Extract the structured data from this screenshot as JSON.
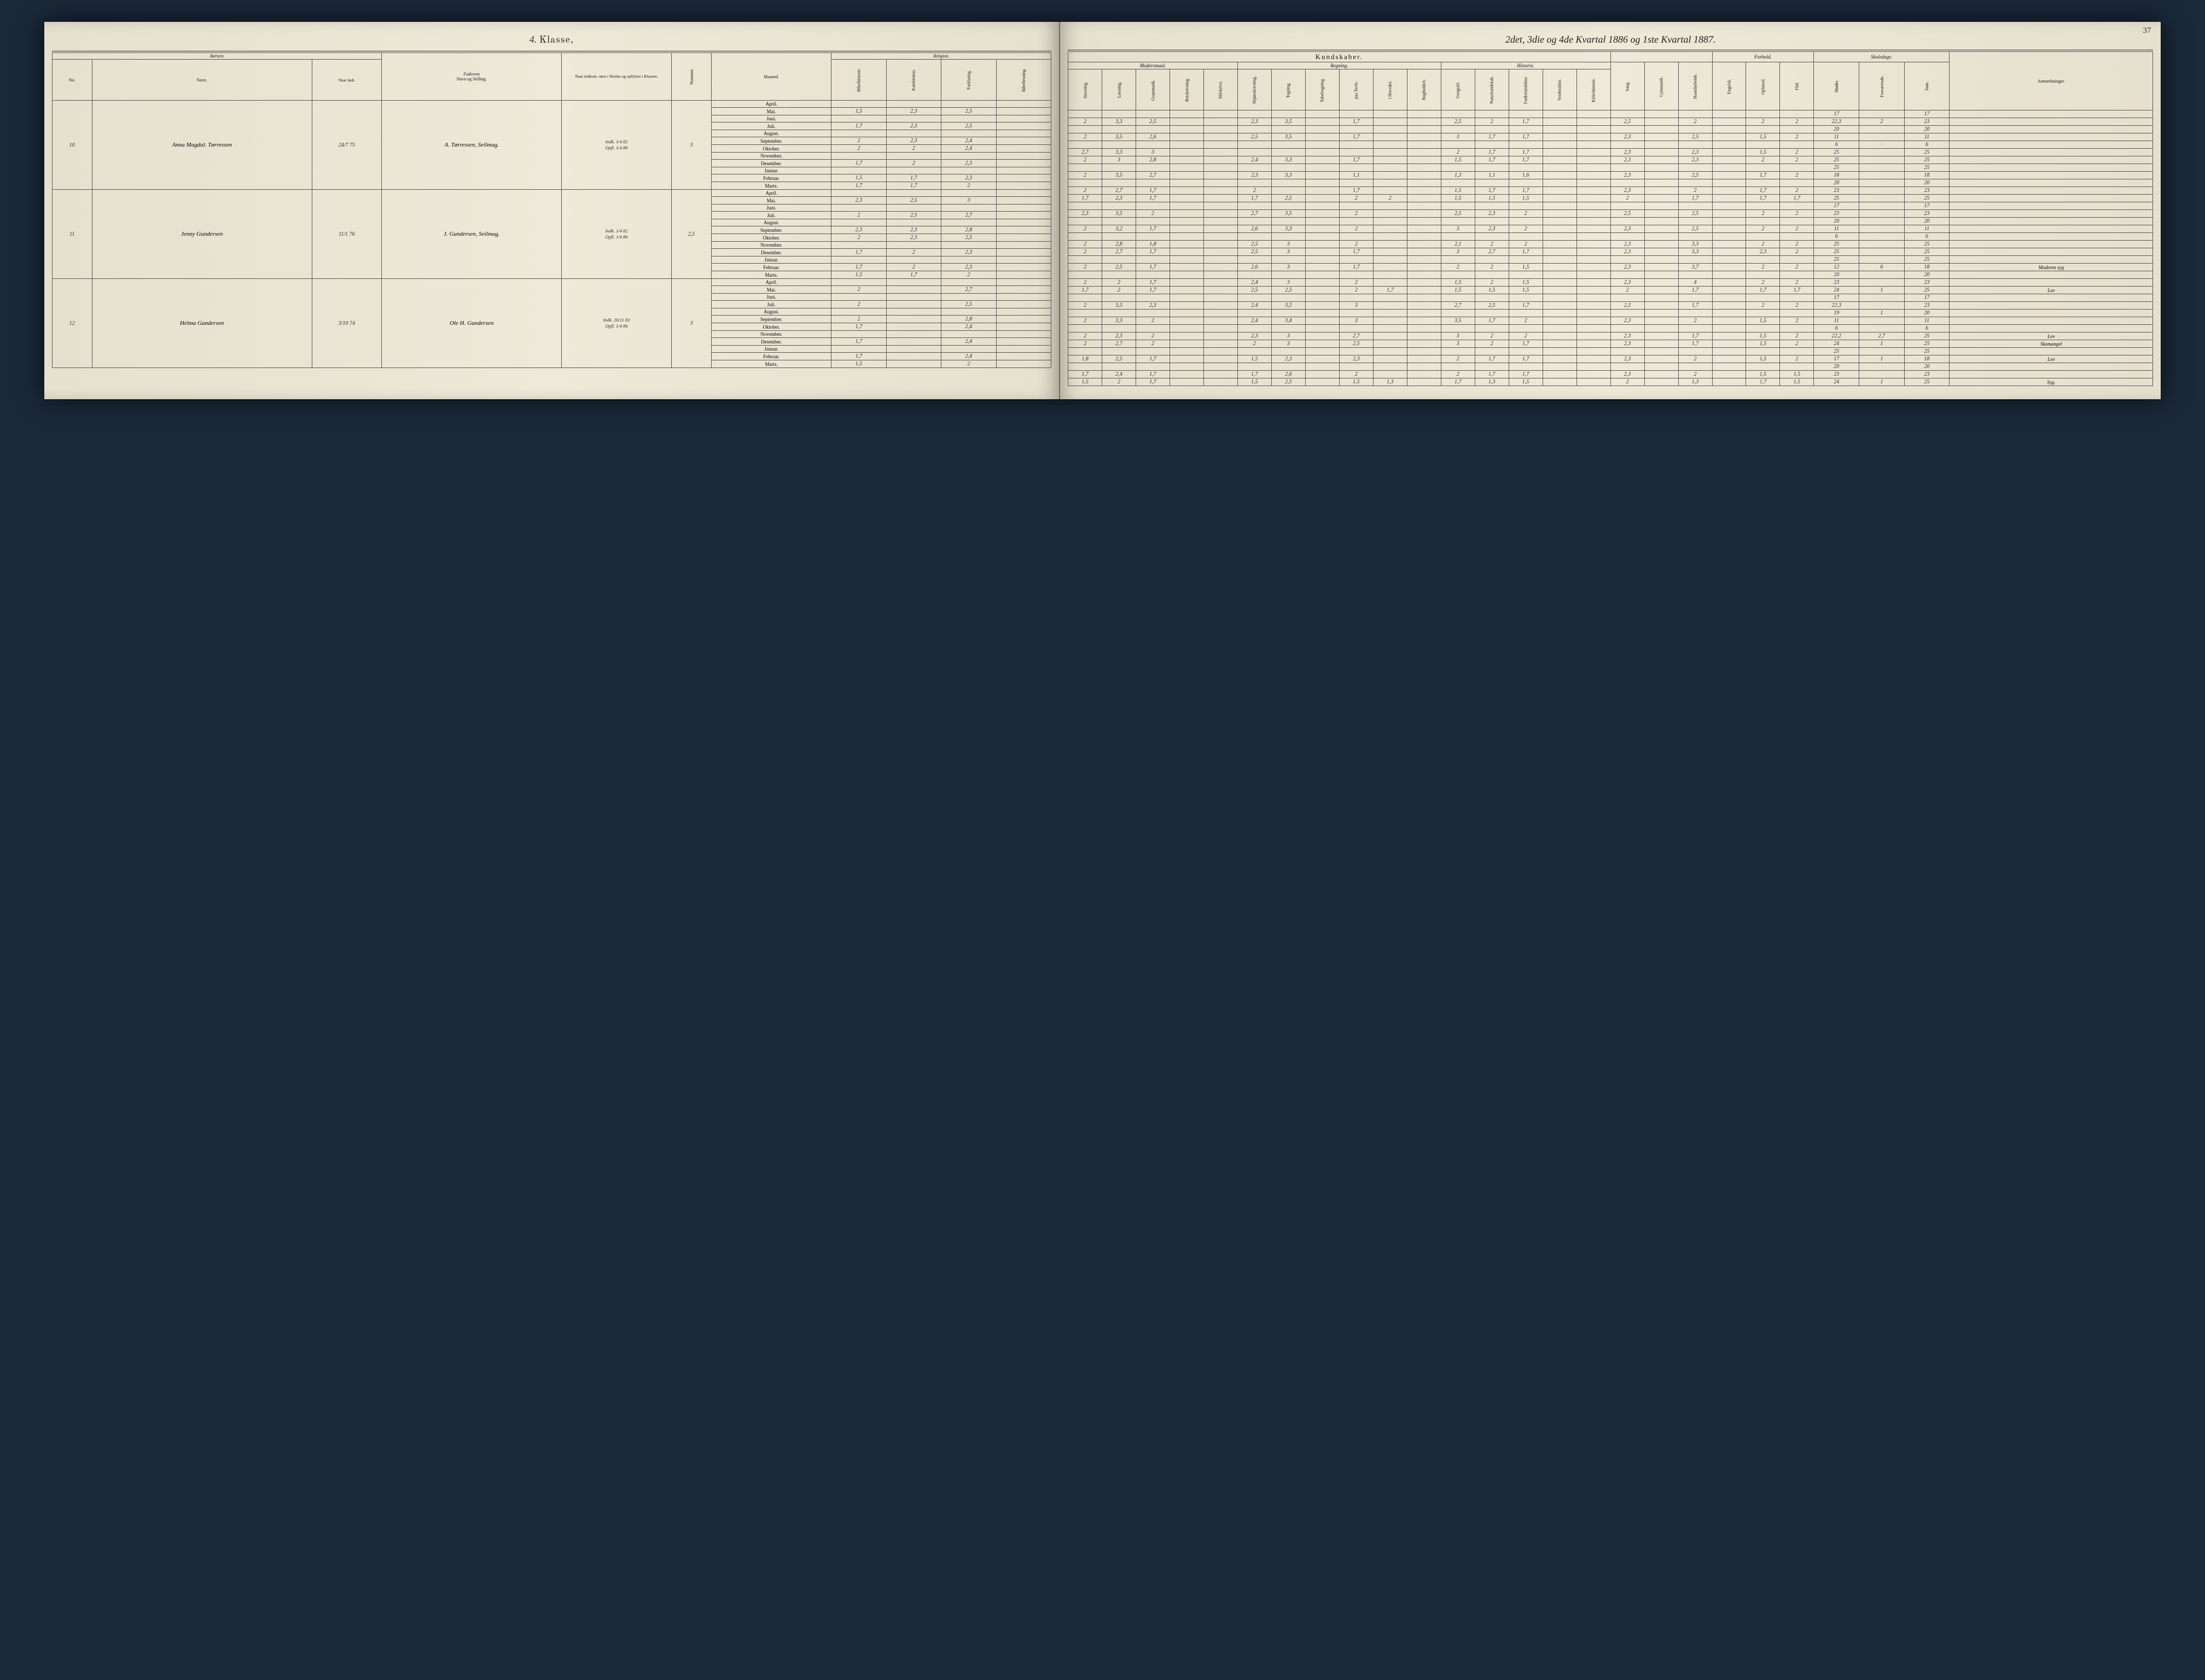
{
  "page_number": "37",
  "left_header_hand": "4.",
  "left_header_printed": "Klasse,",
  "right_header": "2det, 3die og 4de Kvartal 1886 og 1ste Kvartal 1887.",
  "left_groups": {
    "barnets": "Barnets",
    "no": "No.",
    "navn": "Navn.",
    "naar_fodt": "Naar født.",
    "faderens": "Faderens",
    "navn_stilling": "Navn og Stilling.",
    "naar_ind": "Naar indkom-\\nmen i Skolen\\nog opflyttet\\ni\\nKlassen.",
    "nummer": "Nummer.",
    "maaned": "Maaned.",
    "religion": "Religion.",
    "rel_sub": [
      "Bibelhistorie.",
      "Katekismus.",
      "Forklaring.",
      "Bibellesning."
    ]
  },
  "right_groups": {
    "kundskaber": "Kundskaber.",
    "modersmaal": "Modersmaal.",
    "regning": "Regning.",
    "historie": "Historie.",
    "forhold": "Forhold.",
    "skoledage": "Skoledage.",
    "anm": "Anmærkninger.",
    "mm_sub": [
      "Stavning.",
      "Læsning.",
      "Grammatik.",
      "Retskrivning.",
      "Stilskrivn."
    ],
    "reg_sub": [
      "Skjønskrivning.",
      "Tegning.",
      "Tabelregning.",
      "paa Tavle.",
      "i Hovedet.",
      "Bogholderi."
    ],
    "mid_sub": [
      "Geografi.",
      "Naturkundskab.",
      "Fædrelandshist.",
      "Verdenshist.",
      "Kirkehistorie."
    ],
    "other_sub": [
      "Sang.",
      "Gymnastik.",
      "Haandarbeide."
    ],
    "forhold_sub": [
      "Engelsk.",
      "Opførsel.",
      "Flid."
    ],
    "skole_sub": [
      "Mødte.",
      "Fraværende.",
      "Sum."
    ]
  },
  "months": [
    "April.",
    "Mai.",
    "Juni.",
    "Juli.",
    "August.",
    "September.",
    "Oktober.",
    "November.",
    "Desember.",
    "Januar.",
    "Februar.",
    "Marts."
  ],
  "students": [
    {
      "no": "10",
      "navn": "Anna Magdal. Tørressen",
      "fodt": "24/7 75",
      "fader": "A. Tørressen, Seilmag.",
      "ind": "Indk. 1/4 82\\nOpfl. 1/4 86",
      "nummer": "3",
      "left_rows": [
        [
          "",
          "",
          "",
          ""
        ],
        [
          "1,5",
          "2,3",
          "2,5",
          ""
        ],
        [
          "",
          "",
          "",
          ""
        ],
        [
          "1,7",
          "2,3",
          "2,5",
          ""
        ],
        [
          "",
          "",
          "",
          ""
        ],
        [
          "2",
          "2,3",
          "2,4",
          ""
        ],
        [
          "2",
          "2",
          "2,4",
          ""
        ],
        [
          "",
          "",
          "",
          ""
        ],
        [
          "1,7",
          "2",
          "2,3",
          ""
        ],
        [
          "",
          "",
          "",
          ""
        ],
        [
          "1,5",
          "1,7",
          "2,3",
          ""
        ],
        [
          "1,7",
          "1,7",
          "2",
          ""
        ]
      ],
      "right_rows": [
        [
          "",
          "",
          "",
          "",
          "",
          "",
          "",
          "",
          "",
          "",
          "",
          "",
          "",
          "",
          "",
          "",
          "",
          "",
          "",
          "",
          "",
          "",
          "17",
          "",
          "17",
          ""
        ],
        [
          "2",
          "3,3",
          "2,5",
          "",
          "",
          "2,3",
          "3,5",
          "",
          "1,7",
          "",
          "",
          "2,5",
          "2",
          "1,7",
          "",
          "",
          "2,5",
          "",
          "2",
          "",
          "2",
          "2",
          "22,3",
          "2",
          "23",
          ""
        ],
        [
          "",
          "",
          "",
          "",
          "",
          "",
          "",
          "",
          "",
          "",
          "",
          "",
          "",
          "",
          "",
          "",
          "",
          "",
          "",
          "",
          "",
          "",
          "20",
          "",
          "20",
          ""
        ],
        [
          "2",
          "3,5",
          "2,6",
          "",
          "",
          "2,5",
          "3,5",
          "",
          "1,7",
          "",
          "",
          "3",
          "1,7",
          "1,7",
          "",
          "",
          "2,3",
          "",
          "2,5",
          "",
          "1,5",
          "2",
          "11",
          "",
          "11",
          ""
        ],
        [
          "",
          "",
          "",
          "",
          "",
          "",
          "",
          "",
          "",
          "",
          "",
          "",
          "",
          "",
          "",
          "",
          "",
          "",
          "",
          "",
          "",
          "",
          "6",
          "·",
          "6",
          ""
        ],
        [
          "2,7",
          "3,3",
          "3",
          "",
          "",
          "",
          "",
          "",
          "",
          "",
          "",
          "2",
          "1,7",
          "1,7",
          "",
          "",
          "2,3",
          "",
          "2,3",
          "",
          "1,5",
          "2",
          "25",
          "",
          "25",
          ""
        ],
        [
          "2",
          "3",
          "2,8",
          "",
          "",
          "2,4",
          "3,3",
          "",
          "1,7",
          "",
          "",
          "1,5",
          "1,7",
          "1,7",
          "",
          "",
          "2,3",
          "",
          "2,3",
          "",
          "2",
          "2",
          "25",
          "",
          "25",
          ""
        ],
        [
          "",
          "",
          "",
          "",
          "",
          "",
          "",
          "",
          "",
          "",
          "",
          "",
          "",
          "",
          "",
          "",
          "",
          "",
          "",
          "",
          "",
          "",
          "25",
          "",
          "25",
          ""
        ],
        [
          "2",
          "3,5",
          "2,7",
          "",
          "",
          "2,3",
          "3,3",
          "",
          "1,1",
          "",
          "",
          "1,3",
          "1,1",
          "1,6",
          "",
          "",
          "2,3",
          "",
          "2,5",
          "",
          "1,7",
          "2",
          "18",
          "",
          "18",
          ""
        ],
        [
          "",
          "",
          "",
          "",
          "",
          "",
          "",
          "",
          "",
          "",
          "",
          "",
          "",
          "",
          "",
          "",
          "",
          "",
          "",
          "",
          "",
          "",
          "20",
          "",
          "20",
          ""
        ],
        [
          "2",
          "2,7",
          "1,7",
          "",
          "",
          "2",
          "",
          "",
          "1,7",
          "",
          "",
          "1,5",
          "1,7",
          "1,7",
          "",
          "",
          "2,3",
          "",
          "2",
          "",
          "1,7",
          "2",
          "23",
          "",
          "23",
          ""
        ],
        [
          "1,7",
          "2,3",
          "1,7",
          "",
          "",
          "1,7",
          "2,5",
          "",
          "2",
          "2",
          "",
          "1,5",
          "1,5",
          "1,5",
          "",
          "",
          "2",
          "",
          "1,7",
          "",
          "1,7",
          "1,7",
          "25",
          "",
          "25",
          ""
        ]
      ]
    },
    {
      "no": "11",
      "navn": "Jenny Gundersen",
      "fodt": "11/1 76",
      "fader": "J. Gundersen, Seilmag.",
      "ind": "Indk. 1/4 82\\nOpfl. 1/4 86",
      "nummer": "2,5",
      "left_rows": [
        [
          "",
          "",
          "",
          ""
        ],
        [
          "2,3",
          "2,5",
          "3",
          ""
        ],
        [
          "",
          "",
          "",
          ""
        ],
        [
          "2",
          "2,5",
          "2,7",
          ""
        ],
        [
          "",
          "",
          "",
          ""
        ],
        [
          "2,3",
          "2,3",
          "2,8",
          ""
        ],
        [
          "2",
          "2,3",
          "2,5",
          ""
        ],
        [
          "",
          "",
          "",
          ""
        ],
        [
          "1,7",
          "2",
          "2,3",
          ""
        ],
        [
          "",
          "",
          "",
          ""
        ],
        [
          "1,7",
          "2",
          "2,3",
          ""
        ],
        [
          "1,5",
          "1,7",
          "2",
          ""
        ]
      ],
      "right_rows": [
        [
          "",
          "",
          "",
          "",
          "",
          "",
          "",
          "",
          "",
          "",
          "",
          "",
          "",
          "",
          "",
          "",
          "",
          "",
          "",
          "",
          "",
          "",
          "17",
          "",
          "17",
          ""
        ],
        [
          "2,3",
          "3,5",
          "2",
          "",
          "",
          "2,7",
          "3,5",
          "",
          "2",
          "",
          "",
          "2,5",
          "2,3",
          "2",
          "",
          "",
          "2,5",
          "",
          "2,5",
          "",
          "2",
          "2",
          "23",
          "",
          "23",
          ""
        ],
        [
          "",
          "",
          "",
          "",
          "",
          "",
          "",
          "",
          "",
          "",
          "",
          "",
          "",
          "",
          "",
          "",
          "",
          "",
          "",
          "",
          "",
          "",
          "20",
          "",
          "20",
          ""
        ],
        [
          "2",
          "3,2",
          "1,7",
          "",
          "",
          "2,6",
          "3,3",
          "",
          "2",
          "",
          "",
          "3",
          "2,3",
          "2",
          "",
          "",
          "2,3",
          "",
          "2,5",
          "",
          "2",
          "2",
          "11",
          "",
          "11",
          ""
        ],
        [
          "",
          "",
          "",
          "",
          "",
          "",
          "",
          "",
          "",
          "",
          "",
          "",
          "",
          "",
          "",
          "",
          "",
          "",
          "",
          "",
          "",
          "",
          "6",
          "",
          "6",
          ""
        ],
        [
          "2",
          "2,8",
          "1,8",
          "",
          "",
          "2,5",
          "3",
          "",
          "2",
          "",
          "",
          "2,1",
          "2",
          "2",
          "",
          "",
          "2,3",
          "",
          "3,3",
          "",
          "2",
          "2",
          "25",
          "",
          "25",
          ""
        ],
        [
          "2",
          "2,7",
          "1,7",
          "",
          "",
          "2,5",
          "3",
          "",
          "1,7",
          "",
          "",
          "3",
          "2,7",
          "1,7",
          "",
          "",
          "2,3",
          "",
          "3,3",
          "",
          "2,3",
          "2",
          "25",
          "",
          "25",
          ""
        ],
        [
          "",
          "",
          "",
          "",
          "",
          "",
          "",
          "",
          "",
          "",
          "",
          "",
          "",
          "",
          "",
          "",
          "",
          "",
          "",
          "",
          "",
          "",
          "25",
          "",
          "25",
          ""
        ],
        [
          "2",
          "2,5",
          "1,7",
          "",
          "",
          "2,6",
          "3",
          "",
          "1,7",
          "",
          "",
          "2",
          "2",
          "1,5",
          "",
          "",
          "2,3",
          "",
          "3,7",
          "",
          "2",
          "2",
          "12",
          "6",
          "18",
          "Moderen syg"
        ],
        [
          "",
          "",
          "",
          "",
          "",
          "",
          "",
          "",
          "",
          "",
          "",
          "",
          "",
          "",
          "",
          "",
          "",
          "",
          "",
          "",
          "",
          "",
          "20",
          "",
          "20",
          ""
        ],
        [
          "2",
          "2",
          "1,7",
          "",
          "",
          "2,4",
          "3",
          "",
          "2",
          "",
          "",
          "1,5",
          "2",
          "1,5",
          "",
          "",
          "2,3",
          "",
          "4",
          "",
          "2",
          "2",
          "23",
          "",
          "23",
          ""
        ],
        [
          "1,7",
          "2",
          "1,7",
          "",
          "",
          "2,5",
          "2,5",
          "",
          "2",
          "1,7",
          "",
          "1,5",
          "1,5",
          "1,5",
          "",
          "",
          "2",
          "",
          "1,7",
          "",
          "1,7",
          "1,7",
          "24",
          "1",
          "25",
          "Lov"
        ]
      ]
    },
    {
      "no": "12",
      "navn": "Helma Gundersen",
      "fodt": "3/10 74",
      "fader": "Ole H. Gundersen",
      "ind": "Indk. 26/11 83\\nOpfl. 1/4 86",
      "nummer": "3",
      "left_rows": [
        [
          "",
          "",
          "",
          ""
        ],
        [
          "2",
          "",
          "2,7",
          ""
        ],
        [
          "",
          "",
          "",
          ""
        ],
        [
          "2",
          "",
          "2,5",
          ""
        ],
        [
          "",
          "",
          "",
          ""
        ],
        [
          "2",
          "",
          "2,8",
          ""
        ],
        [
          "1,7",
          "",
          "2,4",
          ""
        ],
        [
          "",
          "",
          "",
          ""
        ],
        [
          "1,7",
          "",
          "2,4",
          ""
        ],
        [
          "",
          "",
          "",
          ""
        ],
        [
          "1,7",
          "",
          "2,4",
          ""
        ],
        [
          "1,5",
          "",
          "2",
          ""
        ]
      ],
      "right_rows": [
        [
          "",
          "",
          "",
          "",
          "",
          "",
          "",
          "",
          "",
          "",
          "",
          "",
          "",
          "",
          "",
          "",
          "",
          "",
          "",
          "",
          "",
          "",
          "17",
          "",
          "17",
          ""
        ],
        [
          "2",
          "3,5",
          "2,3",
          "",
          "",
          "2,4",
          "3,5",
          "",
          "3",
          "",
          "",
          "2,7",
          "2,5",
          "1,7",
          "",
          "",
          "2,5",
          "",
          "1,7",
          "",
          "2",
          "2",
          "22,3",
          "",
          "23",
          ""
        ],
        [
          "",
          "",
          "",
          "",
          "",
          "",
          "",
          "",
          "",
          "",
          "",
          "",
          "",
          "",
          "",
          "",
          "",
          "",
          "",
          "",
          "",
          "",
          "19",
          "1",
          "20",
          ""
        ],
        [
          "2",
          "3,3",
          "2",
          "",
          "",
          "2,4",
          "3,4",
          "",
          "3",
          "",
          "",
          "3,5",
          "1,7",
          "2",
          "",
          "",
          "2,3",
          "",
          "2",
          "",
          "1,5",
          "2",
          "11",
          "",
          "11",
          ""
        ],
        [
          "",
          "",
          "",
          "",
          "",
          "",
          "",
          "",
          "",
          "",
          "",
          "",
          "",
          "",
          "",
          "",
          "",
          "",
          "",
          "",
          "",
          "",
          "6",
          "",
          "6",
          ""
        ],
        [
          "2",
          "2,3",
          "2",
          "",
          "",
          "2,3",
          "3",
          "",
          "2,7",
          "",
          "",
          "3",
          "2",
          "2",
          "",
          "",
          "2,3",
          "",
          "1,7",
          "",
          "1,5",
          "2",
          "22,2",
          "2,7",
          "25",
          "Lov"
        ],
        [
          "2",
          "2,7",
          "2",
          "",
          "",
          "2",
          "3",
          "",
          "2,5",
          "",
          "",
          "3",
          "2",
          "1,7",
          "",
          "",
          "2,3",
          "",
          "1,7",
          "",
          "1,5",
          "2",
          "24",
          "1",
          "25",
          "Skomangel"
        ],
        [
          "",
          "",
          "",
          "",
          "",
          "",
          "",
          "",
          "",
          "",
          "",
          "",
          "",
          "",
          "",
          "",
          "",
          "",
          "",
          "",
          "",
          "",
          "25",
          "",
          "25",
          ""
        ],
        [
          "1,8",
          "2,5",
          "1,7",
          "",
          "",
          "1,5",
          "2,3",
          "",
          "2,3",
          "",
          "",
          "2",
          "1,7",
          "1,7",
          "",
          "",
          "2,3",
          "",
          "2",
          "",
          "1,5",
          "2",
          "17",
          "1",
          "18",
          "Lov"
        ],
        [
          "",
          "",
          "",
          "",
          "",
          "",
          "",
          "",
          "",
          "",
          "",
          "",
          "",
          "",
          "",
          "",
          "",
          "",
          "",
          "",
          "",
          "",
          "20",
          "",
          "20",
          ""
        ],
        [
          "1,7",
          "2,4",
          "1,7",
          "",
          "",
          "1,7",
          "2,6",
          "",
          "2",
          "",
          "",
          "2",
          "1,7",
          "1,7",
          "",
          "",
          "2,3",
          "",
          "2",
          "",
          "1,5",
          "1,5",
          "23",
          "",
          "23",
          ""
        ],
        [
          "1,5",
          "2",
          "1,7",
          "",
          "",
          "1,5",
          "2,5",
          "",
          "1,5",
          "1,3",
          "",
          "1,7",
          "1,3",
          "1,5",
          "",
          "",
          "2",
          "",
          "1,3",
          "",
          "1,7",
          "1,5",
          "24",
          "1",
          "25",
          "Syg."
        ]
      ]
    }
  ]
}
